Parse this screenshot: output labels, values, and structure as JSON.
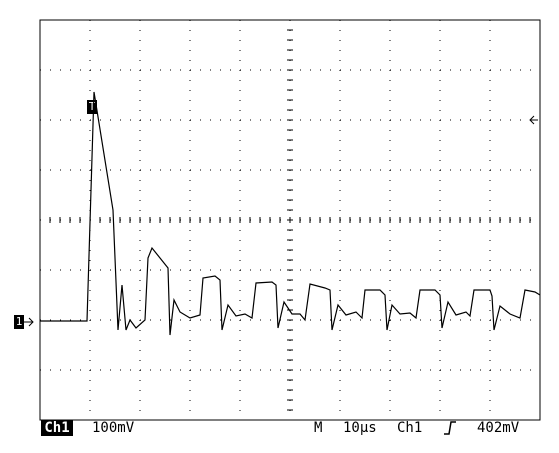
{
  "chart_data": {
    "type": "line",
    "xlim": [
      0,
      100
    ],
    "ylim": [
      -200,
      600
    ],
    "grid": true,
    "color": "#000000",
    "x": [
      0,
      9.4,
      10.8,
      14.6,
      15.6,
      16.4,
      17.2,
      18,
      19.2,
      21,
      21.6,
      22.4,
      24,
      25.6,
      26,
      26.8,
      28,
      30,
      32,
      32.6,
      35,
      36,
      36.4,
      37.6,
      39.2,
      41,
      42.4,
      43.2,
      46.4,
      47.2,
      47.6,
      48.8,
      50.4,
      52,
      53,
      54,
      57,
      58,
      58.4,
      59.6,
      61.2,
      63.2,
      64.4,
      65,
      68,
      69,
      69.4,
      70.4,
      72,
      74,
      75.2,
      76,
      79,
      80,
      80.4,
      81.6,
      83.2,
      85.2,
      86,
      86.8,
      90,
      90.4,
      90.8,
      92,
      94,
      96,
      97,
      99,
      100
    ],
    "values": [
      -2,
      -2,
      456,
      220,
      -20,
      70,
      -20,
      0,
      -16,
      0,
      124,
      144,
      124,
      104,
      -30,
      40,
      16,
      4,
      10,
      84,
      88,
      80,
      -20,
      30,
      8,
      12,
      4,
      74,
      76,
      70,
      -16,
      36,
      12,
      12,
      0,
      72,
      64,
      60,
      -20,
      30,
      10,
      16,
      4,
      60,
      60,
      50,
      -20,
      30,
      12,
      14,
      4,
      60,
      60,
      50,
      -16,
      36,
      10,
      16,
      8,
      60,
      60,
      48,
      -20,
      28,
      12,
      4,
      60,
      56,
      50
    ],
    "trigger_marker": "T",
    "channel_marker": "1",
    "status": {
      "channel": "Ch1",
      "scale": "100mV",
      "mode": "M",
      "timebase": "10µs",
      "trigger_channel": "Ch1",
      "trigger_level": "402mV"
    }
  }
}
